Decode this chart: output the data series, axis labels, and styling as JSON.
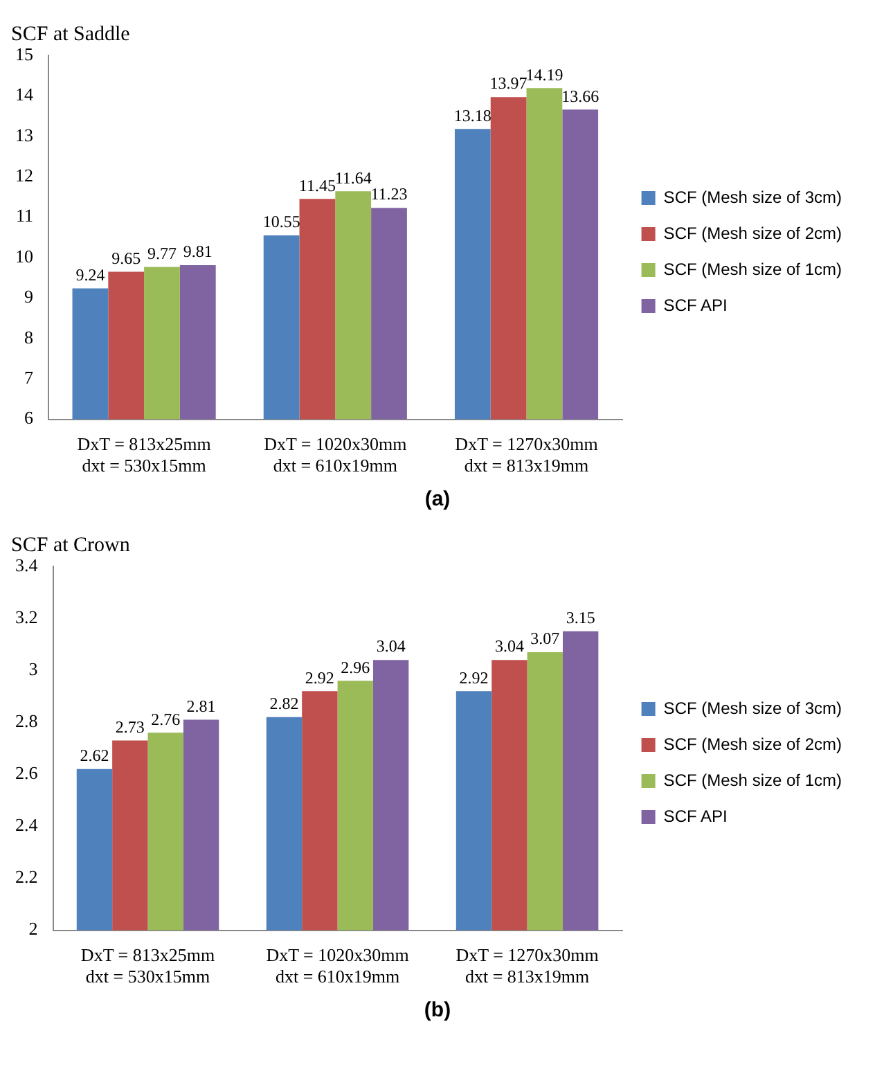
{
  "chart_data": [
    {
      "type": "bar",
      "title": "SCF at Saddle",
      "categories": [
        "DxT = 813x25mm\ndxt = 530x15mm",
        "DxT = 1020x30mm\ndxt = 610x19mm",
        "DxT = 1270x30mm\ndxt = 813x19mm"
      ],
      "series": [
        {
          "name": "SCF (Mesh size of 3cm)",
          "color": "#4f81bd",
          "values": [
            9.24,
            10.55,
            13.18
          ]
        },
        {
          "name": "SCF (Mesh size of 2cm)",
          "color": "#c0504d",
          "values": [
            9.65,
            11.45,
            13.97
          ]
        },
        {
          "name": "SCF (Mesh size of 1cm)",
          "color": "#9bbb59",
          "values": [
            9.77,
            11.64,
            14.19
          ]
        },
        {
          "name": "SCF API",
          "color": "#8064a2",
          "values": [
            9.81,
            11.23,
            13.66
          ]
        }
      ],
      "ylim": [
        6,
        15
      ],
      "yticks": [
        6,
        7,
        8,
        9,
        10,
        11,
        12,
        13,
        14,
        15
      ],
      "data_labels": true,
      "legend": "right",
      "annotations": [
        "(a)"
      ]
    },
    {
      "type": "bar",
      "title": "SCF at Crown",
      "categories": [
        "DxT = 813x25mm\ndxt = 530x15mm",
        "DxT = 1020x30mm\ndxt = 610x19mm",
        "DxT = 1270x30mm\ndxt = 813x19mm"
      ],
      "series": [
        {
          "name": "SCF (Mesh size of 3cm)",
          "color": "#4f81bd",
          "values": [
            2.62,
            2.82,
            2.92
          ]
        },
        {
          "name": "SCF (Mesh size of 2cm)",
          "color": "#c0504d",
          "values": [
            2.73,
            2.92,
            3.04
          ]
        },
        {
          "name": "SCF (Mesh size of 1cm)",
          "color": "#9bbb59",
          "values": [
            2.76,
            2.96,
            3.07
          ]
        },
        {
          "name": "SCF API",
          "color": "#8064a2",
          "values": [
            2.81,
            3.04,
            3.15
          ]
        }
      ],
      "ylim": [
        2,
        3.4
      ],
      "yticks": [
        2,
        2.2,
        2.4,
        2.6,
        2.8,
        3,
        3.2,
        3.4
      ],
      "data_labels": true,
      "legend": "right",
      "annotations": [
        "(b)"
      ]
    }
  ]
}
